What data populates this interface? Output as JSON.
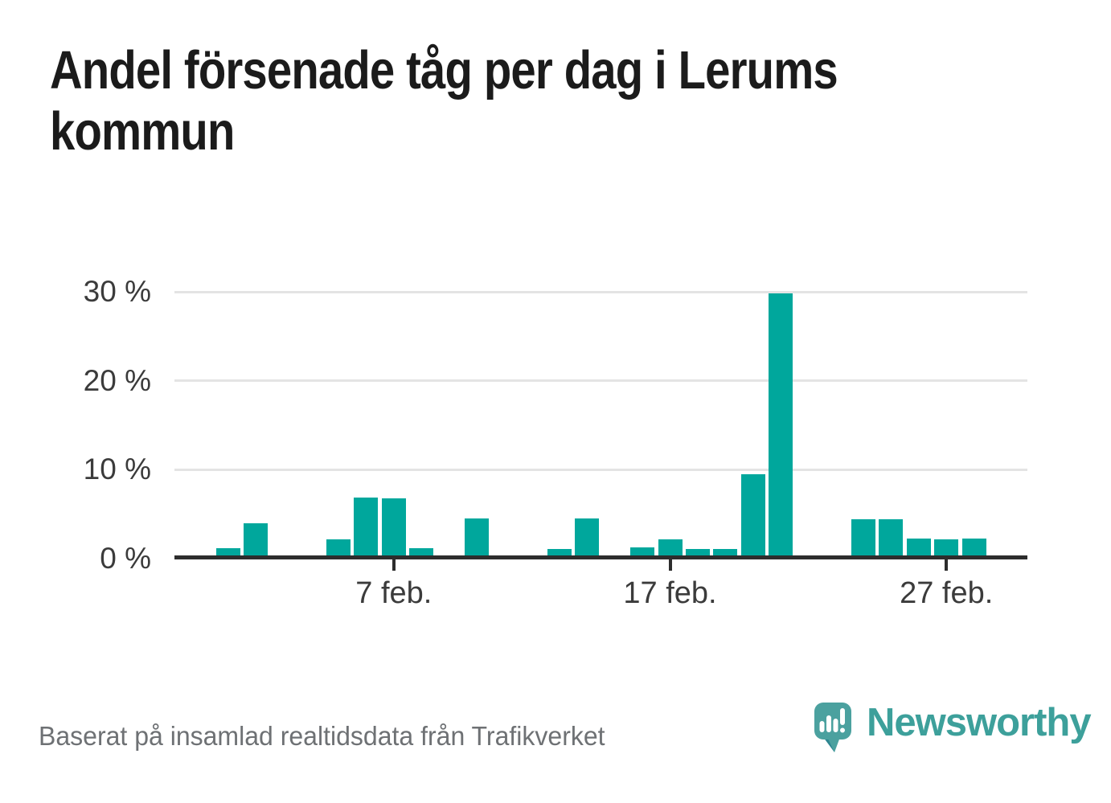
{
  "title_lines": [
    "Andel försenade tåg per dag i Lerums",
    "kommun"
  ],
  "footer": {
    "source_text": "Baserat på insamlad realtidsdata från Trafikverket"
  },
  "branding": {
    "logo_text": "Newsworthy",
    "logo_icon": "newsworthy-speech-bubble-bar-chart-icon"
  },
  "colors": {
    "bar": "#00a79c",
    "axis": "#2d2d2d",
    "gridline": "#e4e4e4",
    "title_text": "#1b1b1b",
    "axis_text": "#3b3b3b",
    "muted_text": "#6e7174",
    "brand_teal": "#3da09b",
    "logo_bubble": "#4ba19f"
  },
  "chart_data": {
    "type": "bar",
    "title": "Andel försenade tåg per dag i Lerums kommun",
    "xlabel": "",
    "ylabel": "",
    "unit": "%",
    "grid": "horizontal",
    "legend": "none",
    "ylim": [
      0,
      30
    ],
    "categories": [
      "1 feb.",
      "2 feb.",
      "3 feb.",
      "4 feb.",
      "5 feb.",
      "6 feb.",
      "7 feb.",
      "8 feb.",
      "9 feb.",
      "10 feb.",
      "11 feb.",
      "12 feb.",
      "13 feb.",
      "14 feb.",
      "15 feb.",
      "16 feb.",
      "17 feb.",
      "18 feb.",
      "19 feb.",
      "20 feb.",
      "21 feb.",
      "22 feb.",
      "23 feb.",
      "24 feb.",
      "25 feb.",
      "26 feb.",
      "27 feb.",
      "28 feb."
    ],
    "values": [
      1.2,
      4.0,
      0,
      0,
      2.2,
      6.9,
      6.8,
      1.2,
      0,
      4.5,
      0,
      0,
      1.1,
      4.5,
      0,
      1.3,
      2.2,
      1.1,
      1.1,
      9.5,
      29.8,
      0,
      0,
      4.4,
      4.4,
      2.3,
      2.2,
      2.3
    ],
    "yticks": [
      {
        "value": 0,
        "label": "0 %"
      },
      {
        "value": 10,
        "label": "10 %"
      },
      {
        "value": 20,
        "label": "20 %"
      },
      {
        "value": 30,
        "label": "30 %"
      }
    ],
    "xticks": [
      {
        "index": 6,
        "label": "7 feb."
      },
      {
        "index": 16,
        "label": "17 feb."
      },
      {
        "index": 26,
        "label": "27 feb."
      }
    ]
  }
}
